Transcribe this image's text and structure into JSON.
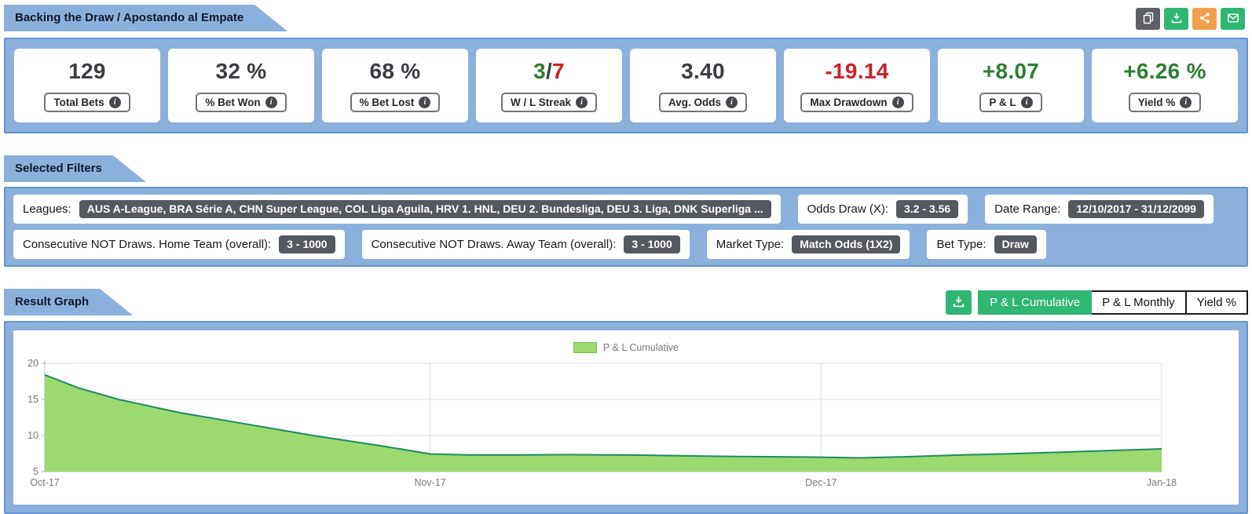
{
  "header": {
    "title": "Backing the Draw / Apostando al Empate",
    "action_icons": [
      "copy-icon",
      "download-icon",
      "share-icon",
      "email-icon"
    ]
  },
  "stats": [
    {
      "value": "129",
      "label": "Total Bets"
    },
    {
      "value": "32 %",
      "label": "% Bet Won"
    },
    {
      "value": "68 %",
      "label": "% Bet Lost"
    },
    {
      "win": "3",
      "sep": "/",
      "loss": "7",
      "label": "W / L Streak"
    },
    {
      "value": "3.40",
      "label": "Avg. Odds"
    },
    {
      "value": "-19.14",
      "label": "Max Drawdown"
    },
    {
      "value": "+8.07",
      "label": "P & L"
    },
    {
      "value": "+6.26 %",
      "label": "Yield %"
    }
  ],
  "filters": {
    "section_title": "Selected Filters",
    "row1": [
      {
        "label": "Leagues:",
        "value": "AUS A-League, BRA Série A, CHN Super League, COL Liga Aguila, HRV 1. HNL, DEU 2. Bundesliga, DEU 3. Liga, DNK Superliga ..."
      },
      {
        "label": "Odds Draw (X):",
        "value": "3.2 - 3.56"
      },
      {
        "label": "Date Range:",
        "value": "12/10/2017 - 31/12/2099"
      }
    ],
    "row2": [
      {
        "label": "Consecutive NOT Draws. Home Team (overall):",
        "value": "3 - 1000"
      },
      {
        "label": "Consecutive NOT Draws. Away Team (overall):",
        "value": "3 - 1000"
      },
      {
        "label": "Market Type:",
        "value": "Match Odds (1X2)"
      },
      {
        "label": "Bet Type:",
        "value": "Draw"
      }
    ]
  },
  "graph": {
    "section_title": "Result Graph",
    "tabs": [
      "P & L Cumulative",
      "P & L Monthly",
      "Yield %"
    ],
    "active_tab": "P & L Cumulative",
    "legend": "P & L Cumulative"
  },
  "colors": {
    "band_blue": "#8cb0dc",
    "band_border_blue": "#6394d1",
    "positive_green": "#2e7d32",
    "negative_red": "#cb2026",
    "badge_gray": "#54585f",
    "button_green": "#2fb673",
    "button_orange": "#f0a04c",
    "button_gray": "#5d6165",
    "area_fill_green": "#9cda70",
    "area_stroke_green": "#1e8a60"
  },
  "chart_data": {
    "type": "area",
    "title": "P & L Cumulative",
    "legend_entries": [
      "P & L Cumulative"
    ],
    "ylim": [
      5,
      20
    ],
    "yticks": [
      5,
      10,
      15,
      20
    ],
    "xticks": [
      {
        "pos": 0,
        "label": "Oct-17"
      },
      {
        "pos": 0.345,
        "label": "Nov-17"
      },
      {
        "pos": 0.695,
        "label": "Dec-17"
      },
      {
        "pos": 1,
        "label": "Jan-18"
      }
    ],
    "grid": true,
    "legend_position": "top-center",
    "series": [
      {
        "name": "P & L Cumulative",
        "points": [
          [
            0,
            18.4
          ],
          [
            0.03,
            16.6
          ],
          [
            0.066,
            15.0
          ],
          [
            0.12,
            13.2
          ],
          [
            0.18,
            11.6
          ],
          [
            0.24,
            10.0
          ],
          [
            0.3,
            8.6
          ],
          [
            0.345,
            7.45
          ],
          [
            0.38,
            7.3
          ],
          [
            0.42,
            7.3
          ],
          [
            0.47,
            7.35
          ],
          [
            0.52,
            7.3
          ],
          [
            0.57,
            7.2
          ],
          [
            0.62,
            7.1
          ],
          [
            0.66,
            7.05
          ],
          [
            0.695,
            7.0
          ],
          [
            0.73,
            6.9
          ],
          [
            0.77,
            7.05
          ],
          [
            0.82,
            7.3
          ],
          [
            0.87,
            7.5
          ],
          [
            0.92,
            7.75
          ],
          [
            0.96,
            7.95
          ],
          [
            1,
            8.15
          ]
        ]
      }
    ]
  }
}
